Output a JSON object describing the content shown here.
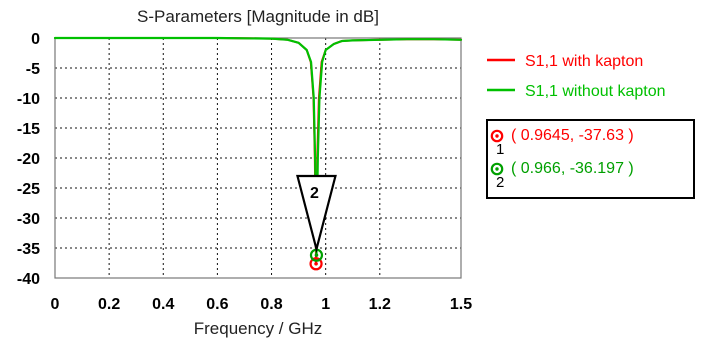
{
  "chart_data": {
    "type": "line",
    "title": "S-Parameters [Magnitude in dB]",
    "xlabel": "Frequency / GHz",
    "ylabel": "",
    "xlim": [
      0,
      1.5
    ],
    "ylim": [
      -40,
      0
    ],
    "xticks": [
      0,
      0.2,
      0.4,
      0.6,
      0.8,
      1,
      1.2,
      1.5
    ],
    "xtick_labels": [
      "0",
      "0.2",
      "0.4",
      "0.6",
      "0.8",
      "1",
      "1.2",
      "1.5"
    ],
    "yticks": [
      0,
      -5,
      -10,
      -15,
      -20,
      -25,
      -30,
      -35,
      -40
    ],
    "ytick_labels": [
      "0",
      "-5",
      "-10",
      "-15",
      "-20",
      "-25",
      "-30",
      "-35",
      "-40"
    ],
    "grid": true,
    "legend_position": "right",
    "series": [
      {
        "name": "S1,1 with kapton",
        "color": "#ff0000",
        "line_style": "solid",
        "x": [
          0,
          0.2,
          0.4,
          0.6,
          0.8,
          0.86,
          0.9,
          0.93,
          0.945,
          0.955,
          0.96,
          0.9645,
          0.969,
          0.975,
          0.985,
          1.0,
          1.03,
          1.06,
          1.1,
          1.2,
          1.3,
          1.4,
          1.5
        ],
        "y": [
          0,
          0,
          0,
          0,
          -0.1,
          -0.3,
          -0.8,
          -2.0,
          -4.0,
          -10.0,
          -20.0,
          -37.63,
          -20.0,
          -10.0,
          -4.0,
          -2.0,
          -1.0,
          -0.5,
          -0.4,
          -0.3,
          -0.2,
          -0.2,
          -0.3
        ]
      },
      {
        "name": "S1,1 without kapton",
        "color": "#00c000",
        "line_style": "solid",
        "x": [
          0,
          0.2,
          0.4,
          0.6,
          0.8,
          0.86,
          0.9,
          0.93,
          0.946,
          0.956,
          0.961,
          0.966,
          0.971,
          0.977,
          0.987,
          1.0,
          1.03,
          1.06,
          1.1,
          1.2,
          1.3,
          1.4,
          1.5
        ],
        "y": [
          0,
          0,
          0,
          0,
          -0.1,
          -0.3,
          -0.8,
          -2.0,
          -4.0,
          -10.0,
          -20.0,
          -36.197,
          -20.0,
          -10.0,
          -4.0,
          -2.0,
          -1.0,
          -0.5,
          -0.4,
          -0.3,
          -0.2,
          -0.2,
          -0.3
        ]
      }
    ],
    "markers": [
      {
        "id": "1",
        "x": 0.9645,
        "y": -37.63,
        "color": "#ff0000",
        "label": "( 0.9645, -37.63 )"
      },
      {
        "id": "2",
        "x": 0.966,
        "y": -36.197,
        "color": "#00a000",
        "label": "( 0.966, -36.197 )"
      }
    ],
    "annotation": {
      "text": "2",
      "type": "triangle-pointer",
      "x": 0.966,
      "y": -36.197
    }
  }
}
